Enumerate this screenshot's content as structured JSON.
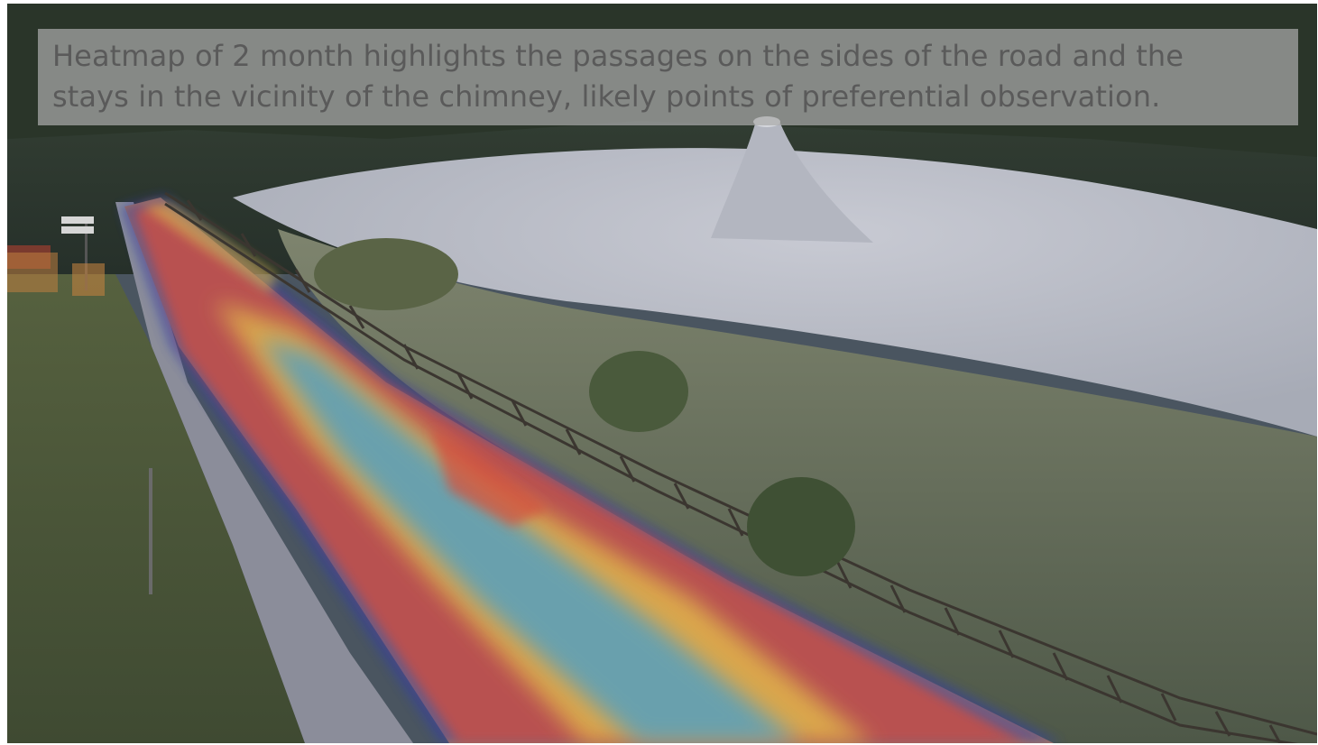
{
  "caption": {
    "line1": "Heatmap of 2 month highlights the passages on the sides of the road and the",
    "line2": "stays in the vicinity of the chimney, likely points of preferential observation."
  },
  "colors": {
    "sky_forest": "#2f3a33",
    "mud_volcano": "#b9bcc6",
    "grass_field": "#6b7560",
    "road": "#b07a5a",
    "heat_hot": "#d9463a",
    "heat_warm": "#e8c048",
    "heat_cool": "#4fa7c9",
    "heat_cold": "#3340a8",
    "caption_bg": "#aaaaaa",
    "caption_text": "#5a5a5a"
  }
}
